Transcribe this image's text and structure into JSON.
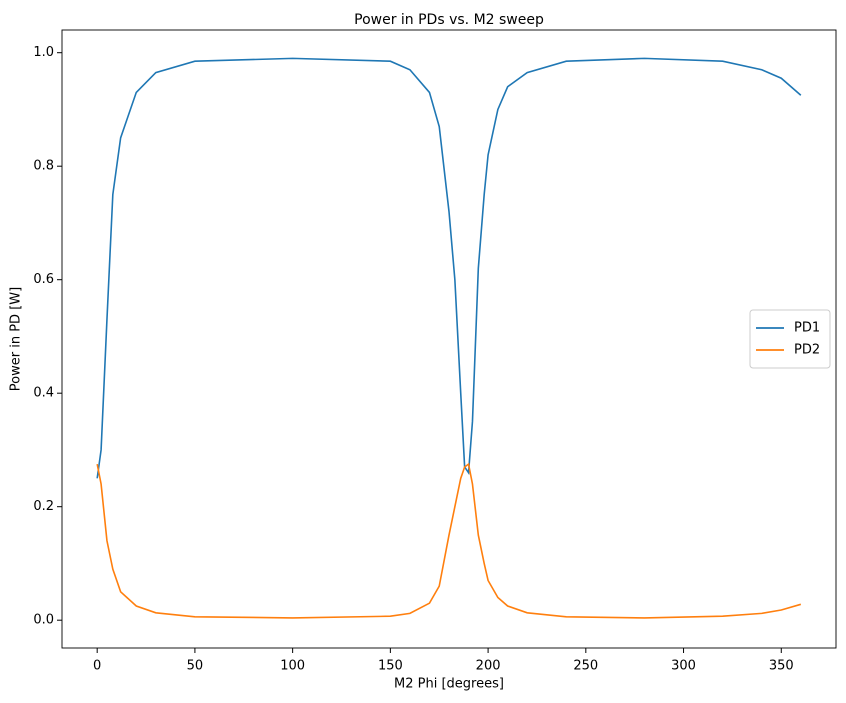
{
  "chart_data": {
    "type": "line",
    "title": "Power in PDs vs. M2 sweep",
    "x_label": "M2 Phi [degrees]",
    "y_label": "Power in PD [W]",
    "x": [
      0,
      2,
      5,
      8,
      12,
      20,
      30,
      50,
      100,
      150,
      160,
      170,
      175,
      180,
      183,
      186,
      188,
      190,
      192,
      195,
      198,
      200,
      205,
      210,
      220,
      240,
      280,
      320,
      340,
      350,
      360
    ],
    "series": [
      {
        "name": "PD1",
        "color": "#1f77b4",
        "values": [
          0.25,
          0.3,
          0.53,
          0.75,
          0.85,
          0.93,
          0.965,
          0.985,
          0.99,
          0.985,
          0.97,
          0.93,
          0.87,
          0.72,
          0.6,
          0.4,
          0.27,
          0.26,
          0.35,
          0.62,
          0.75,
          0.82,
          0.9,
          0.94,
          0.965,
          0.985,
          0.99,
          0.985,
          0.97,
          0.955,
          0.925
        ]
      },
      {
        "name": "PD2",
        "color": "#ff7f0e",
        "values": [
          0.275,
          0.24,
          0.14,
          0.09,
          0.05,
          0.025,
          0.013,
          0.006,
          0.004,
          0.007,
          0.012,
          0.03,
          0.06,
          0.15,
          0.2,
          0.25,
          0.27,
          0.275,
          0.24,
          0.15,
          0.1,
          0.07,
          0.04,
          0.025,
          0.013,
          0.006,
          0.004,
          0.007,
          0.012,
          0.018,
          0.028
        ]
      }
    ],
    "xlim": [
      -18,
      378
    ],
    "ylim": [
      -0.049,
      1.04
    ],
    "xticks": [
      0,
      50,
      100,
      150,
      200,
      250,
      300,
      350
    ],
    "yticks": [
      {
        "value": 0,
        "label": "0.0"
      },
      {
        "value": 0.2,
        "label": "0.2"
      },
      {
        "value": 0.4,
        "label": "0.4"
      },
      {
        "value": 0.6,
        "label": "0.6"
      },
      {
        "value": 0.8,
        "label": "0.8"
      },
      {
        "value": 1,
        "label": "1.0"
      }
    ],
    "legend": "center right",
    "grid": false
  }
}
